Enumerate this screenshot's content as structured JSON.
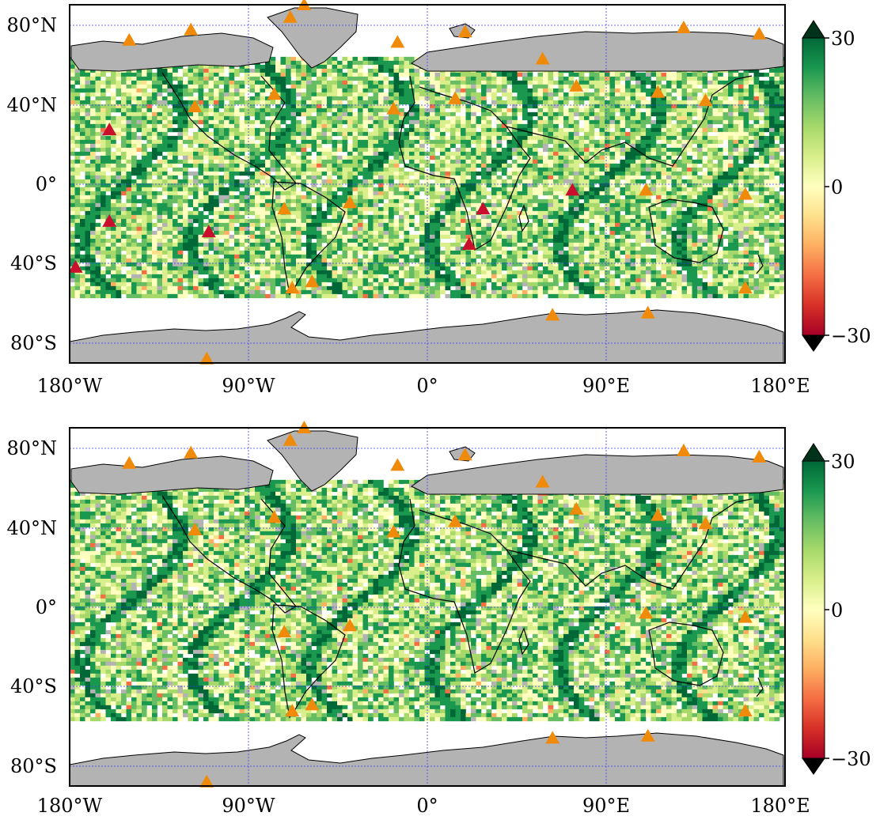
{
  "maps": [
    {
      "id": "top",
      "lat_labels": [
        "80°N",
        "40°N",
        "0°",
        "40°S",
        "80°S"
      ],
      "lon_labels": [
        "180°W",
        "90°W",
        "0°",
        "90°E",
        "180°E"
      ],
      "colorbar": {
        "ticks": [
          "30",
          "0",
          "−30"
        ],
        "range": [
          -30,
          30
        ],
        "extend": "both"
      },
      "stations": [
        {
          "lon": -150,
          "lat": 65,
          "color": "orange"
        },
        {
          "lon": -119,
          "lat": 70,
          "color": "orange"
        },
        {
          "lon": -69,
          "lat": 76,
          "color": "orange"
        },
        {
          "lon": -62,
          "lat": 82,
          "color": "orange"
        },
        {
          "lon": -15,
          "lat": 64,
          "color": "orange"
        },
        {
          "lon": 19,
          "lat": 69,
          "color": "orange"
        },
        {
          "lon": 58,
          "lat": 56,
          "color": "orange"
        },
        {
          "lon": 129,
          "lat": 71,
          "color": "orange"
        },
        {
          "lon": 167,
          "lat": 68,
          "color": "orange"
        },
        {
          "lon": -117,
          "lat": 33,
          "color": "orange"
        },
        {
          "lon": -77,
          "lat": 39,
          "color": "orange"
        },
        {
          "lon": -17,
          "lat": 32,
          "color": "orange"
        },
        {
          "lon": 14,
          "lat": 37,
          "color": "orange"
        },
        {
          "lon": 75,
          "lat": 43,
          "color": "orange"
        },
        {
          "lon": 116,
          "lat": 40,
          "color": "orange"
        },
        {
          "lon": 140,
          "lat": 36,
          "color": "orange"
        },
        {
          "lon": 110,
          "lat": -7,
          "color": "orange"
        },
        {
          "lon": 160,
          "lat": -9,
          "color": "orange"
        },
        {
          "lon": -72,
          "lat": -16,
          "color": "orange"
        },
        {
          "lon": -39,
          "lat": -13,
          "color": "orange"
        },
        {
          "lon": -68,
          "lat": -54,
          "color": "orange"
        },
        {
          "lon": -58,
          "lat": -51,
          "color": "orange"
        },
        {
          "lon": 63,
          "lat": -67,
          "color": "orange"
        },
        {
          "lon": 111,
          "lat": -66,
          "color": "orange"
        },
        {
          "lon": 160,
          "lat": -54,
          "color": "orange"
        },
        {
          "lon": -111,
          "lat": -88,
          "color": "orange"
        },
        {
          "lon": -160,
          "lat": 22,
          "color": "red"
        },
        {
          "lon": -160,
          "lat": -22,
          "color": "red"
        },
        {
          "lon": -110,
          "lat": -27,
          "color": "red"
        },
        {
          "lon": -177,
          "lat": -44,
          "color": "red"
        },
        {
          "lon": 28,
          "lat": -16,
          "color": "red"
        },
        {
          "lon": 21,
          "lat": -33,
          "color": "red"
        },
        {
          "lon": 73,
          "lat": -7,
          "color": "red"
        }
      ]
    },
    {
      "id": "bottom",
      "lat_labels": [
        "80°N",
        "40°N",
        "0°",
        "40°S",
        "80°S"
      ],
      "lon_labels": [
        "180°W",
        "90°W",
        "0°",
        "90°E",
        "180°E"
      ],
      "colorbar": {
        "ticks": [
          "30",
          "0",
          "−30"
        ],
        "range": [
          -30,
          30
        ],
        "extend": "both"
      },
      "stations": [
        {
          "lon": -150,
          "lat": 65,
          "color": "orange"
        },
        {
          "lon": -119,
          "lat": 70,
          "color": "orange"
        },
        {
          "lon": -69,
          "lat": 76,
          "color": "orange"
        },
        {
          "lon": -62,
          "lat": 82,
          "color": "orange"
        },
        {
          "lon": -15,
          "lat": 64,
          "color": "orange"
        },
        {
          "lon": 19,
          "lat": 69,
          "color": "orange"
        },
        {
          "lon": 58,
          "lat": 56,
          "color": "orange"
        },
        {
          "lon": 129,
          "lat": 71,
          "color": "orange"
        },
        {
          "lon": 167,
          "lat": 68,
          "color": "orange"
        },
        {
          "lon": -117,
          "lat": 33,
          "color": "orange"
        },
        {
          "lon": -77,
          "lat": 39,
          "color": "orange"
        },
        {
          "lon": -17,
          "lat": 32,
          "color": "orange"
        },
        {
          "lon": 14,
          "lat": 37,
          "color": "orange"
        },
        {
          "lon": 75,
          "lat": 43,
          "color": "orange"
        },
        {
          "lon": 116,
          "lat": 40,
          "color": "orange"
        },
        {
          "lon": 140,
          "lat": 36,
          "color": "orange"
        },
        {
          "lon": 110,
          "lat": -7,
          "color": "orange"
        },
        {
          "lon": 160,
          "lat": -9,
          "color": "orange"
        },
        {
          "lon": -72,
          "lat": -16,
          "color": "orange"
        },
        {
          "lon": -39,
          "lat": -13,
          "color": "orange"
        },
        {
          "lon": -68,
          "lat": -54,
          "color": "orange"
        },
        {
          "lon": -58,
          "lat": -51,
          "color": "orange"
        },
        {
          "lon": 63,
          "lat": -67,
          "color": "orange"
        },
        {
          "lon": 111,
          "lat": -66,
          "color": "orange"
        },
        {
          "lon": 160,
          "lat": -54,
          "color": "orange"
        },
        {
          "lon": -111,
          "lat": -88,
          "color": "orange"
        }
      ]
    }
  ],
  "colors": {
    "land": "#b3b3b3",
    "gridline": "#3b3bff",
    "marker_orange": "#f08a0b",
    "marker_red": "#c8102e",
    "colormap": [
      "#a50026",
      "#d73027",
      "#f46d43",
      "#fdae61",
      "#fee08b",
      "#ffffbf",
      "#d9ef8b",
      "#a6d96a",
      "#66bd63",
      "#1a9850",
      "#006837"
    ]
  }
}
